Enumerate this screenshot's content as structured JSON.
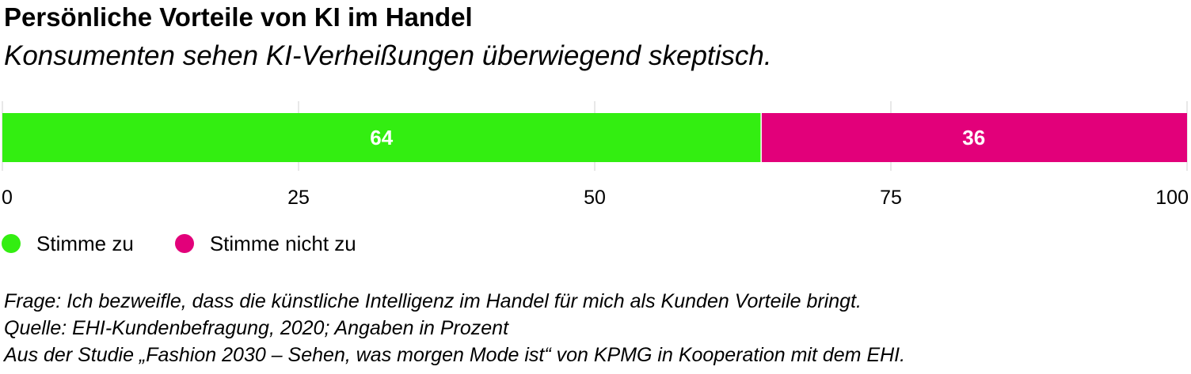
{
  "title": "Persönliche Vorteile von KI im Handel",
  "subtitle": "Konsumenten sehen KI-Verheißungen überwiegend skeptisch.",
  "chart_data": {
    "type": "bar",
    "orientation": "horizontal",
    "stacked": true,
    "categories": [
      ""
    ],
    "series": [
      {
        "name": "Stimme zu",
        "values": [
          64
        ],
        "color": "#33ee11"
      },
      {
        "name": "Stimme nicht zu",
        "values": [
          36
        ],
        "color": "#e2007a"
      }
    ],
    "xlim": [
      0,
      100
    ],
    "xticks": [
      0,
      25,
      50,
      75,
      100
    ],
    "grid": true,
    "legend": "bottom-left"
  },
  "notes": {
    "question": "Frage: Ich bezweifle, dass die künstliche Intelligenz im Handel für mich als Kunden Vorteile bringt.",
    "source": "Quelle: EHI-Kundenbefragung, 2020; Angaben in Prozent",
    "study": "Aus der Studie „Fashion 2030 – Sehen, was morgen Mode ist“ von KPMG in Kooperation mit dem EHI."
  }
}
